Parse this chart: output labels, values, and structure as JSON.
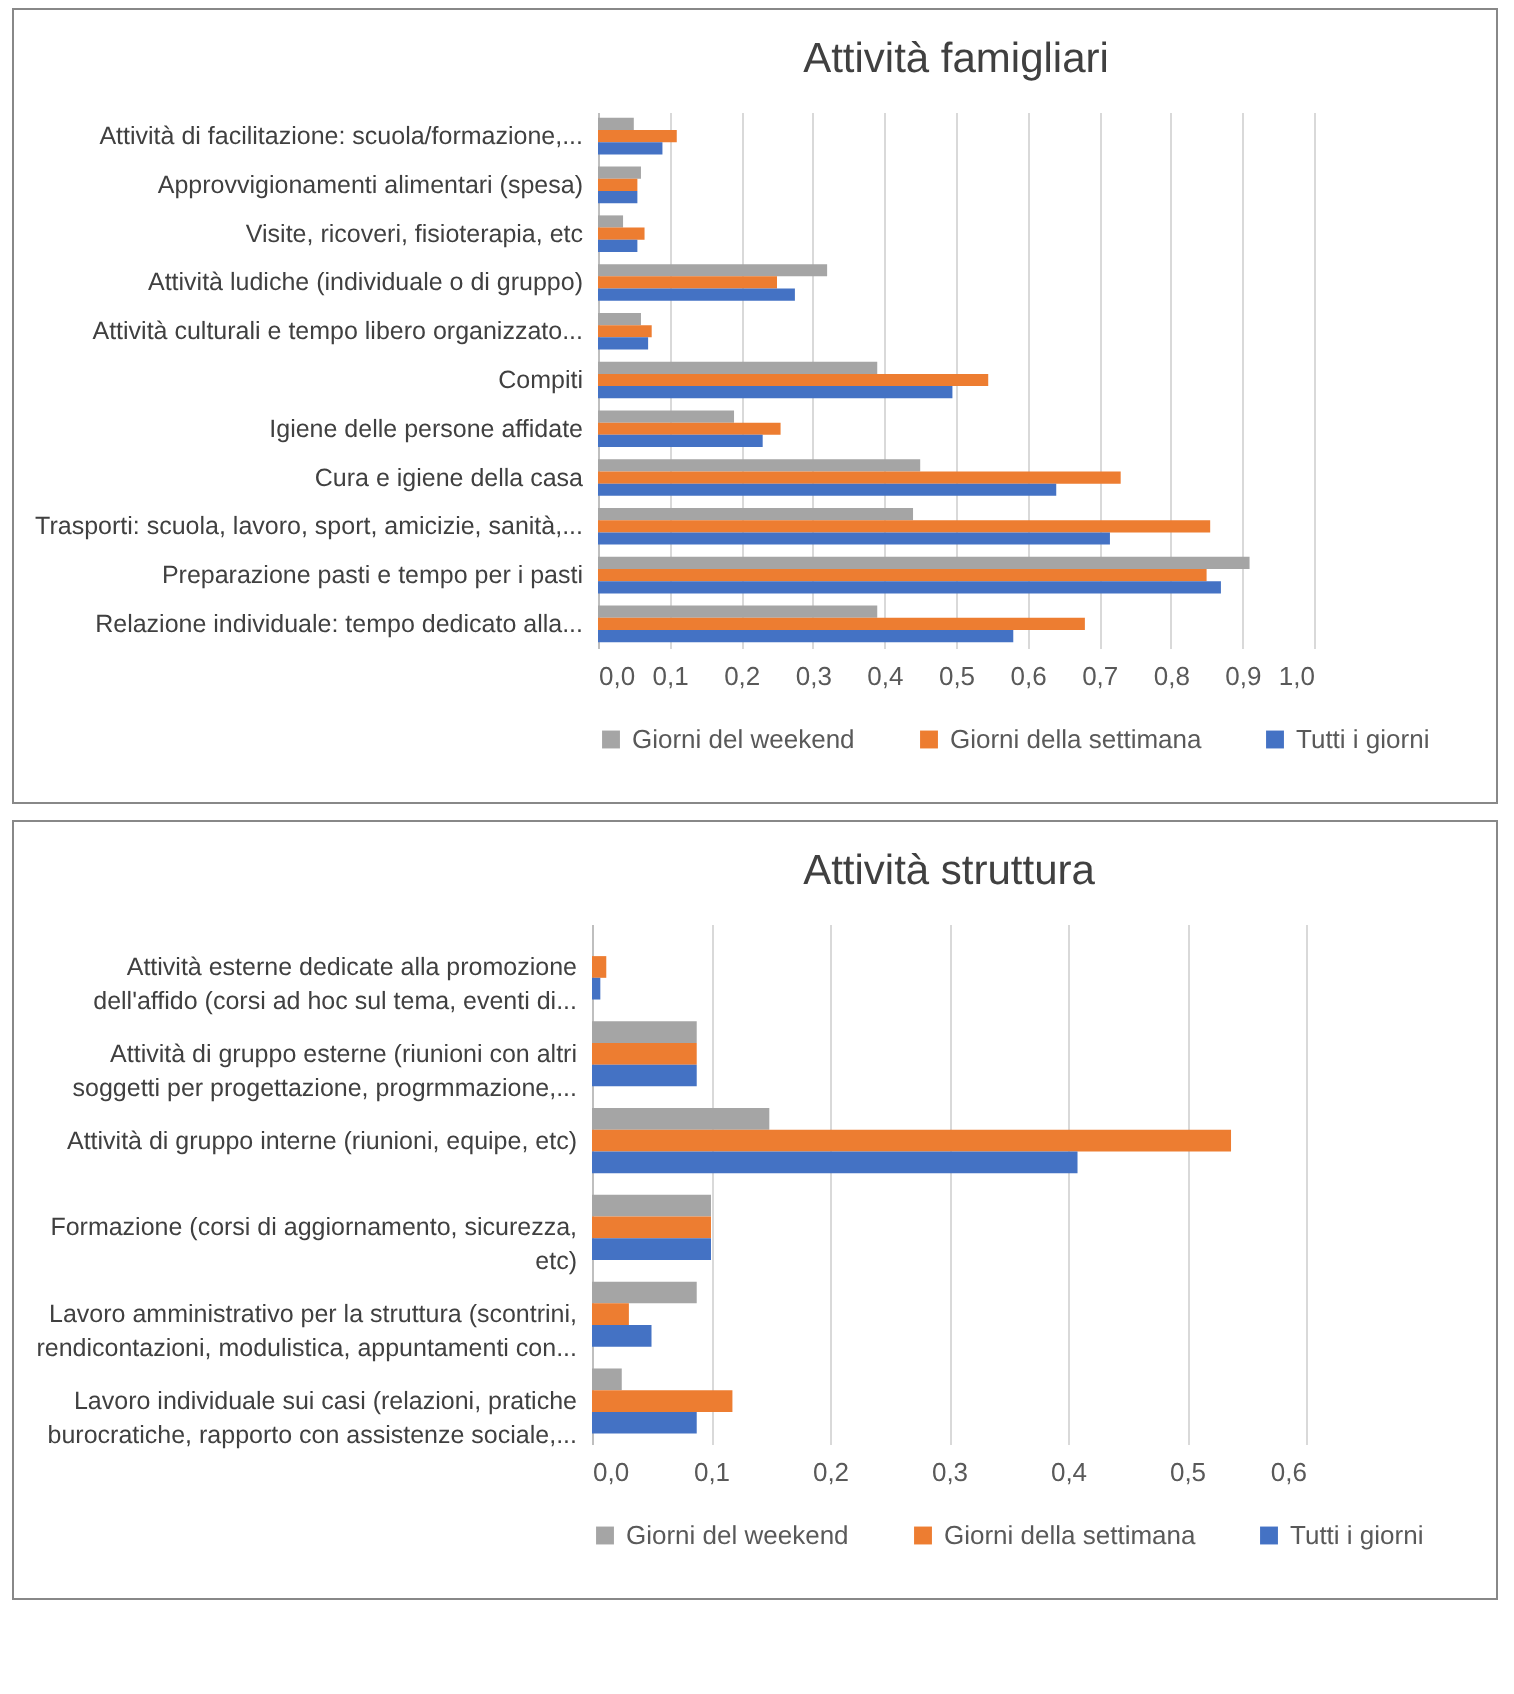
{
  "chart_data": [
    {
      "type": "bar",
      "orientation": "horizontal",
      "title": "Attività famigliari",
      "legend": "bottom",
      "grid": "x",
      "categories": [
        "Attività di facilitazione: scuola/formazione,...",
        "Approvvigionamenti alimentari (spesa)",
        "Visite, ricoveri, fisioterapia, etc",
        "Attività ludiche (individuale o di gruppo)",
        "Attività culturali e tempo libero organizzato...",
        "Compiti",
        "Igiene delle persone affidate",
        "Cura e igiene della casa",
        "Trasporti: scuola, lavoro, sport, amicizie, sanità,...",
        "Preparazione pasti e tempo per i pasti",
        "Relazione individuale: tempo dedicato alla..."
      ],
      "series": [
        {
          "name": "Giorni del weekend",
          "color": "#a5a5a5",
          "values": [
            0.05,
            0.06,
            0.035,
            0.32,
            0.06,
            0.39,
            0.19,
            0.45,
            0.44,
            0.91,
            0.39
          ]
        },
        {
          "name": "Giorni della settimana",
          "color": "#ed7d31",
          "values": [
            0.11,
            0.055,
            0.065,
            0.25,
            0.075,
            0.545,
            0.255,
            0.73,
            0.855,
            0.85,
            0.68
          ]
        },
        {
          "name": "Tutti i giorni",
          "color": "#4472c4",
          "values": [
            0.09,
            0.055,
            0.055,
            0.275,
            0.07,
            0.495,
            0.23,
            0.64,
            0.715,
            0.87,
            0.58
          ]
        }
      ],
      "xlim": [
        0,
        1
      ],
      "xticks": [
        {
          "value": 0,
          "label": "0,0"
        },
        {
          "value": 0.1,
          "label": "0,1"
        },
        {
          "value": 0.2,
          "label": "0,2"
        },
        {
          "value": 0.3,
          "label": "0,3"
        },
        {
          "value": 0.4,
          "label": "0,4"
        },
        {
          "value": 0.5,
          "label": "0,5"
        },
        {
          "value": 0.6,
          "label": "0,6"
        },
        {
          "value": 0.7,
          "label": "0,7"
        },
        {
          "value": 0.8,
          "label": "0,8"
        },
        {
          "value": 0.9,
          "label": "0,9"
        },
        {
          "value": 1,
          "label": "1,0"
        }
      ]
    },
    {
      "type": "bar",
      "orientation": "horizontal",
      "title": "Attività struttura",
      "legend": "bottom",
      "grid": "x",
      "categories": [
        "Attività esterne dedicate alla promozione\ndell'affido (corsi ad hoc sul tema, eventi di...",
        "Attività di gruppo esterne (riunioni con altri\nsoggetti per progettazione, progrmmazione,...",
        "Attività di gruppo interne (riunioni, equipe, etc)",
        "Formazione (corsi di aggiornamento, sicurezza,\netc)",
        "Lavoro amministrativo per la struttura (scontrini,\nrendicontazioni, modulistica, appuntamenti con...",
        "Lavoro individuale sui casi (relazioni, pratiche\nburocratiche, rapporto con assistenze sociale,..."
      ],
      "series": [
        {
          "name": "Giorni del weekend",
          "color": "#a5a5a5",
          "values": [
            0,
            0.088,
            0.149,
            0.1,
            0.088,
            0.025
          ]
        },
        {
          "name": "Giorni della settimana",
          "color": "#ed7d31",
          "values": [
            0.012,
            0.088,
            0.537,
            0.1,
            0.031,
            0.118
          ]
        },
        {
          "name": "Tutti i giorni",
          "color": "#4472c4",
          "values": [
            0.007,
            0.088,
            0.408,
            0.1,
            0.05,
            0.088
          ]
        }
      ],
      "xlim": [
        0,
        0.6
      ],
      "xticks": [
        {
          "value": 0,
          "label": "0,0"
        },
        {
          "value": 0.1,
          "label": "0,1"
        },
        {
          "value": 0.2,
          "label": "0,2"
        },
        {
          "value": 0.3,
          "label": "0,3"
        },
        {
          "value": 0.4,
          "label": "0,4"
        },
        {
          "value": 0.5,
          "label": "0,5"
        },
        {
          "value": 0.6,
          "label": "0,6"
        }
      ]
    }
  ]
}
